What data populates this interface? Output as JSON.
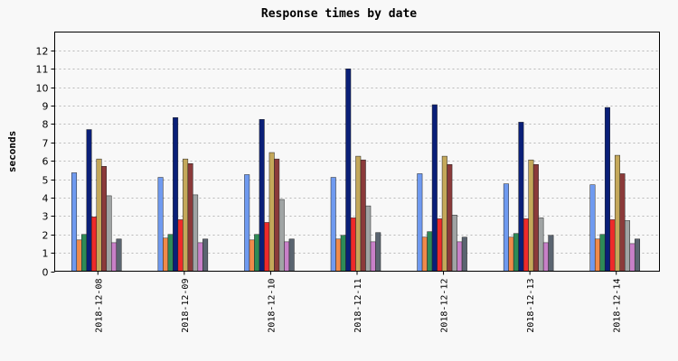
{
  "chart_data": {
    "type": "bar",
    "title": "Response times by date",
    "xlabel": "",
    "ylabel": "seconds",
    "ylim": [
      0,
      13
    ],
    "yticks": [
      0,
      1,
      2,
      3,
      4,
      5,
      6,
      7,
      8,
      9,
      10,
      11,
      12
    ],
    "grid": true,
    "legend": "none",
    "categories": [
      "2018-12-08",
      "2018-12-09",
      "2018-12-10",
      "2018-12-11",
      "2018-12-12",
      "2018-12-13",
      "2018-12-14"
    ],
    "series": [
      {
        "color": "#6f9af0",
        "values": [
          5.35,
          5.1,
          5.25,
          5.1,
          5.3,
          4.75,
          4.7
        ]
      },
      {
        "color": "#f08a4b",
        "values": [
          1.7,
          1.8,
          1.7,
          1.75,
          1.85,
          1.85,
          1.75
        ]
      },
      {
        "color": "#2e8b57",
        "values": [
          2.0,
          2.0,
          2.0,
          1.95,
          2.15,
          2.05,
          2.0
        ]
      },
      {
        "color": "#0a1f78",
        "values": [
          7.7,
          8.35,
          8.25,
          11.0,
          9.05,
          8.1,
          8.9
        ]
      },
      {
        "color": "#ee2a2a",
        "values": [
          2.95,
          2.8,
          2.65,
          2.9,
          2.85,
          2.85,
          2.8
        ]
      },
      {
        "color": "#c4a85a",
        "values": [
          6.1,
          6.1,
          6.45,
          6.25,
          6.25,
          6.05,
          6.3
        ]
      },
      {
        "color": "#8b3a3a",
        "values": [
          5.7,
          5.85,
          6.1,
          6.05,
          5.8,
          5.8,
          5.3
        ]
      },
      {
        "color": "#a0a4a4",
        "values": [
          4.1,
          4.15,
          3.9,
          3.55,
          3.05,
          2.9,
          2.75
        ]
      },
      {
        "color": "#c880c8",
        "values": [
          1.55,
          1.55,
          1.6,
          1.6,
          1.6,
          1.55,
          1.5
        ]
      },
      {
        "color": "#5a6470",
        "values": [
          1.75,
          1.75,
          1.75,
          2.1,
          1.85,
          1.95,
          1.75
        ]
      }
    ]
  }
}
